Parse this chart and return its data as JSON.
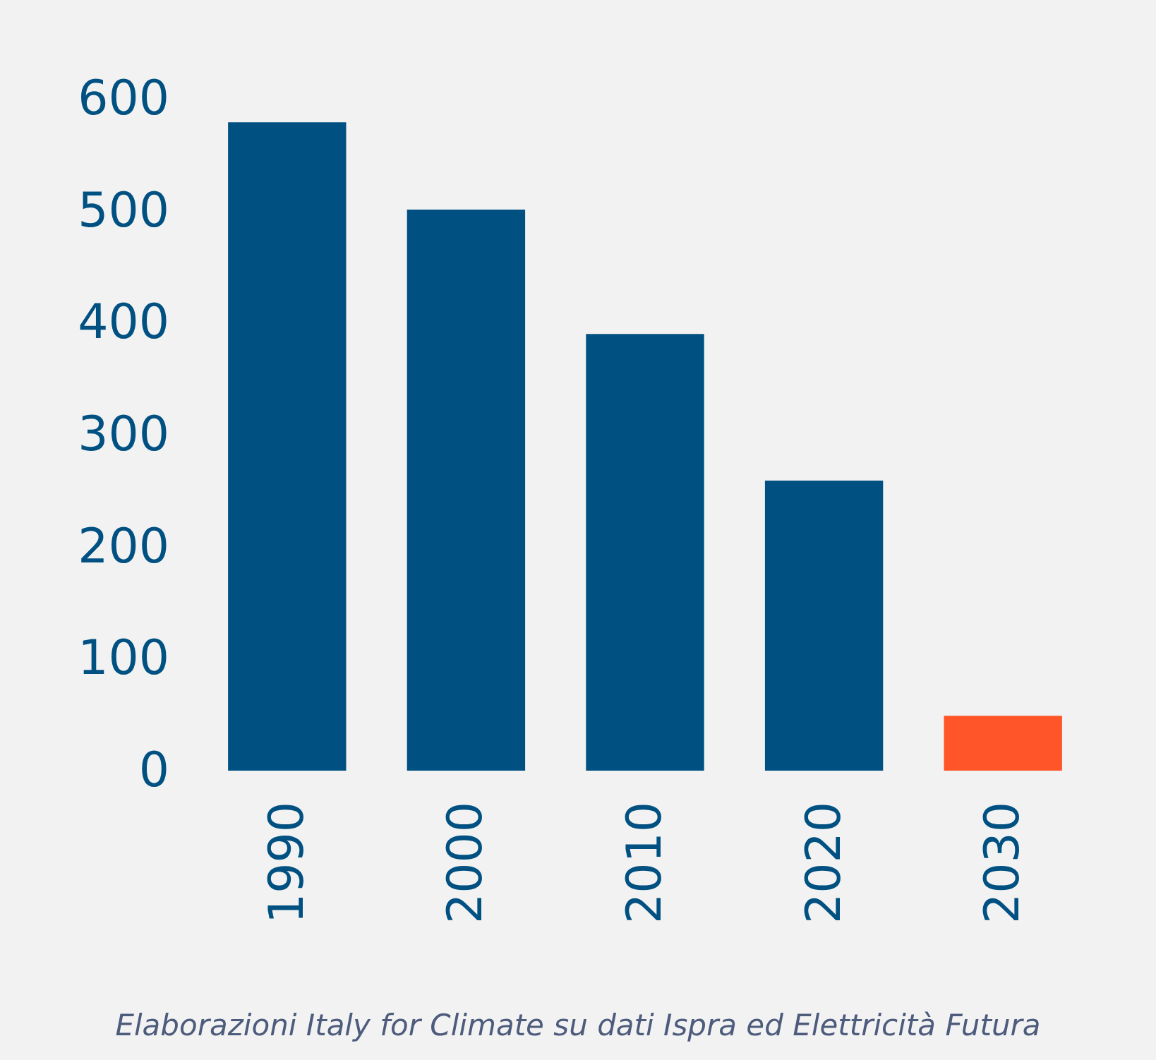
{
  "chart_data": {
    "type": "bar",
    "categories": [
      "1990",
      "2000",
      "2010",
      "2020",
      "2030"
    ],
    "values": [
      579,
      501,
      390,
      259,
      49
    ],
    "colors": [
      "#005182",
      "#005182",
      "#005182",
      "#005182",
      "#ff5528"
    ],
    "ylim": [
      0,
      600
    ],
    "yticks": [
      0,
      100,
      200,
      300,
      400,
      500,
      600
    ],
    "grid": false,
    "annotations": [
      "Elaborazioni Italy for Climate su dati Ispra ed Elettricità Futura"
    ]
  }
}
